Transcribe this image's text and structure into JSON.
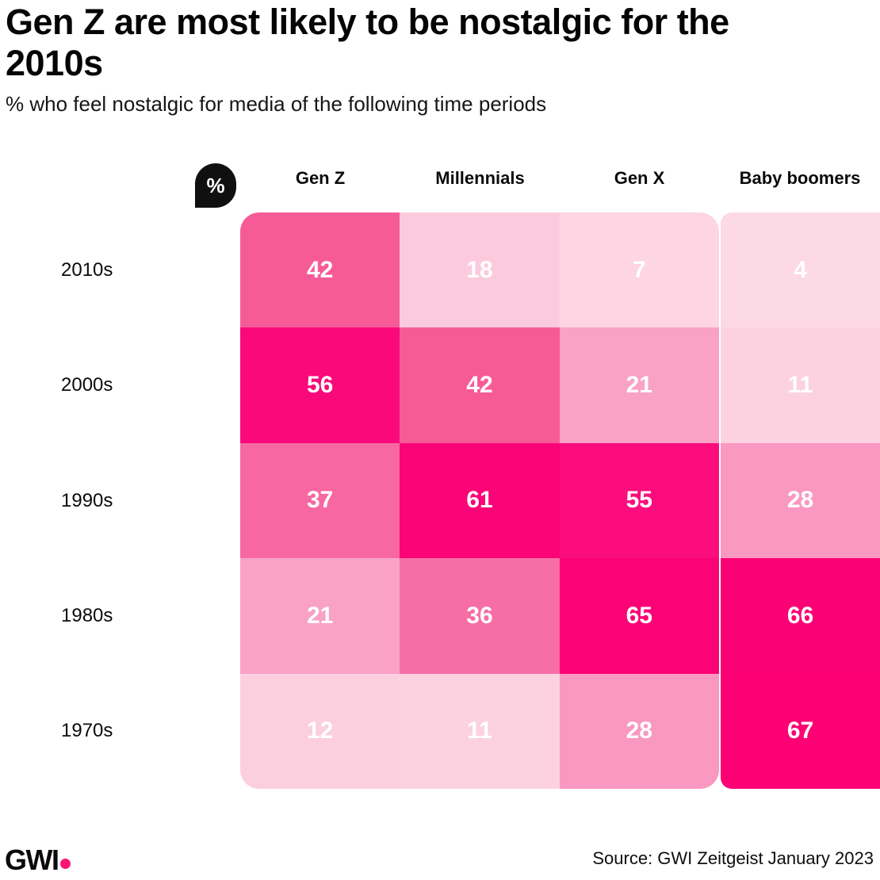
{
  "title": "Gen Z are most likely to be nostalgic for the 2010s",
  "subtitle": "% who feel nostalgic for media of the following time periods",
  "legend_badge": "%",
  "columns": [
    "Gen Z",
    "Millennials",
    "Gen X",
    "Baby boomers"
  ],
  "rows": [
    "2010s",
    "2000s",
    "1990s",
    "1980s",
    "1970s"
  ],
  "footer": {
    "logo": "GWI",
    "logo_dot_color": "#FB1574",
    "source": "Source: GWI Zeitgeist January 2023"
  },
  "chart_data": {
    "type": "heatmap",
    "title": "Gen Z are most likely to be nostalgic for the 2010s",
    "subtitle": "% who feel nostalgic for media of the following time periods",
    "unit": "%",
    "x_categories": [
      "Gen Z",
      "Millennials",
      "Gen X",
      "Baby boomers"
    ],
    "y_categories": [
      "2010s",
      "2000s",
      "1990s",
      "1980s",
      "1970s"
    ],
    "values": [
      [
        42,
        18,
        7,
        4
      ],
      [
        56,
        42,
        21,
        11
      ],
      [
        37,
        61,
        55,
        28
      ],
      [
        21,
        36,
        65,
        66
      ],
      [
        12,
        11,
        28,
        67
      ]
    ],
    "cell_colors": [
      [
        "#F75B97",
        "#FBCBDD",
        "#FDD5E3",
        "#FDD8E5"
      ],
      [
        "#FA097B",
        "#F75B97",
        "#F9A2C6",
        "#FCD2E1"
      ],
      [
        "#F768A2",
        "#FB0478",
        "#FB0D7D",
        "#F998C1"
      ],
      [
        "#F9A2C6",
        "#F76DA6",
        "#FC0277",
        "#FC0176"
      ],
      [
        "#FCCFDF",
        "#FCD2E1",
        "#F998C1",
        "#FD0074"
      ]
    ],
    "color_scale": {
      "low_value_color": "#FDD8E5",
      "high_value_color": "#FD0074"
    },
    "value_label_color": "#FFFFFF",
    "layout": "last column separated from first three by white gutter; grid has rounded corners; no axis lines or gridlines"
  }
}
